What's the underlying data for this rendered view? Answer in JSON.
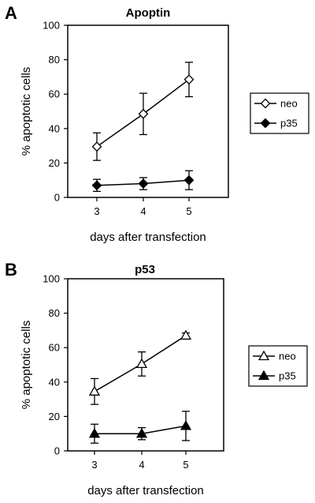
{
  "chart_data": [
    {
      "panel": "A",
      "type": "line",
      "title": "Apoptin",
      "xlabel": "days after transfection",
      "ylabel": "% apoptotic cells",
      "x": [
        3,
        4,
        5
      ],
      "ylim": [
        0,
        100
      ],
      "yticks": [
        0,
        20,
        40,
        60,
        80,
        100
      ],
      "grid": false,
      "legend_position": "right",
      "series": [
        {
          "name": "neo",
          "marker": "open-diamond",
          "values": [
            29.5,
            48.5,
            68.5
          ],
          "errors": [
            8,
            12,
            10
          ]
        },
        {
          "name": "p35",
          "marker": "filled-diamond",
          "values": [
            7,
            8,
            10
          ],
          "errors": [
            3.5,
            3.5,
            5.5
          ]
        }
      ]
    },
    {
      "panel": "B",
      "type": "line",
      "title": "p53",
      "xlabel": "days after transfection",
      "ylabel": "% apoptotic cells",
      "x": [
        3,
        4,
        5
      ],
      "ylim": [
        0,
        100
      ],
      "yticks": [
        0,
        20,
        40,
        60,
        80,
        100
      ],
      "grid": false,
      "legend_position": "right",
      "series": [
        {
          "name": "neo",
          "marker": "open-triangle",
          "values": [
            34.5,
            50.5,
            67
          ],
          "errors": [
            7.5,
            7,
            1.5
          ]
        },
        {
          "name": "p35",
          "marker": "filled-triangle",
          "values": [
            10,
            10,
            14.5
          ],
          "errors": [
            5.5,
            3.5,
            8.5
          ]
        }
      ]
    }
  ]
}
